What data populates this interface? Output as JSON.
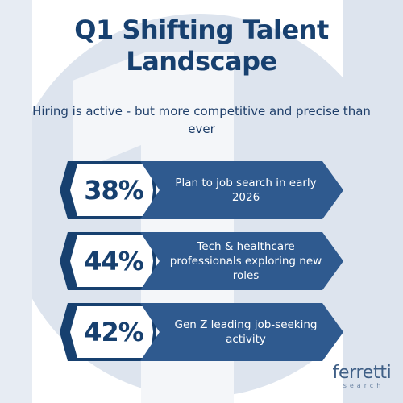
{
  "title_line1": "Q1 Shifting Talent",
  "title_line2": "Landscape",
  "subtitle": "Hiring is active - but more competitive and precise than ever",
  "stats": [
    {
      "percent": "38%",
      "label": "Plan to job search in early 2026"
    },
    {
      "percent": "44%",
      "label": "Tech & healthcare professionals exploring new roles"
    },
    {
      "percent": "42%",
      "label": "Gen Z leading job-seeking activity"
    }
  ],
  "logo": {
    "word": "ferretti",
    "sub": "search"
  },
  "colors": {
    "navy": "#17406f",
    "banner": "#2f5a8f",
    "background_shape": "#dde4ee",
    "background_digit": "#f4f6f9"
  }
}
